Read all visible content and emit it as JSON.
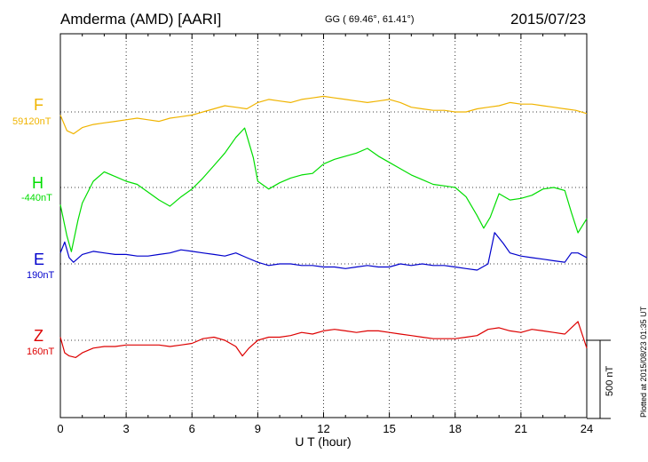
{
  "header": {
    "station": "Amderma (AMD)  [AARI]",
    "coords": "GG ( 69.46°,  61.41°)",
    "date": "2015/07/23"
  },
  "plotted_note": "Plotted at 2015/08/23 01:35 UT",
  "chart_data": {
    "type": "line",
    "title": "Amderma (AMD)  [AARI]",
    "xlabel": "U T (hour)",
    "xlim": [
      0,
      24
    ],
    "xticks": [
      0,
      3,
      6,
      9,
      12,
      15,
      18,
      21,
      24
    ],
    "xtick_labels": [
      "0",
      "3",
      "6",
      "9",
      "12",
      "15",
      "18",
      "21",
      "24"
    ],
    "scale_bar": {
      "value": 500,
      "unit": "nT",
      "label": "500 nT"
    },
    "grid": true,
    "series": [
      {
        "name": "F",
        "baseline_label": "59120nT",
        "baseline": 59120,
        "color": "#f0b400",
        "x": [
          0,
          0.3,
          0.6,
          1,
          1.5,
          2,
          2.5,
          3,
          3.5,
          4,
          4.5,
          5,
          5.5,
          6,
          6.5,
          7,
          7.5,
          8,
          8.5,
          9,
          9.5,
          10,
          10.5,
          11,
          11.5,
          12,
          12.5,
          13,
          13.5,
          14,
          14.5,
          15,
          15.5,
          16,
          16.5,
          17,
          17.5,
          18,
          18.5,
          19,
          19.5,
          20,
          20.5,
          21,
          21.5,
          22,
          22.5,
          23,
          23.5,
          24
        ],
        "values": [
          59100,
          59000,
          58980,
          59020,
          59040,
          59050,
          59060,
          59070,
          59080,
          59070,
          59060,
          59080,
          59090,
          59100,
          59120,
          59140,
          59160,
          59150,
          59140,
          59180,
          59200,
          59190,
          59180,
          59200,
          59210,
          59220,
          59210,
          59200,
          59190,
          59180,
          59190,
          59200,
          59180,
          59150,
          59140,
          59130,
          59130,
          59120,
          59120,
          59140,
          59150,
          59160,
          59180,
          59170,
          59170,
          59160,
          59150,
          59140,
          59130,
          59110
        ]
      },
      {
        "name": "H",
        "baseline_label": "-440nT",
        "baseline": -440,
        "color": "#00dd00",
        "x": [
          0,
          0.3,
          0.5,
          0.8,
          1,
          1.5,
          2,
          2.5,
          3,
          3.5,
          4,
          4.5,
          5,
          5.5,
          6,
          6.5,
          7,
          7.5,
          8,
          8.4,
          8.8,
          9,
          9.5,
          10,
          10.5,
          11,
          11.5,
          12,
          12.5,
          13,
          13.5,
          14,
          14.5,
          15,
          15.5,
          16,
          16.5,
          17,
          17.5,
          18,
          18.5,
          19,
          19.3,
          19.6,
          20,
          20.5,
          21,
          21.5,
          22,
          22.5,
          23,
          23.3,
          23.6,
          24
        ],
        "values": [
          -550,
          -750,
          -850,
          -650,
          -540,
          -400,
          -340,
          -370,
          -400,
          -420,
          -470,
          -520,
          -560,
          -500,
          -450,
          -380,
          -300,
          -220,
          -120,
          -60,
          -250,
          -400,
          -450,
          -410,
          -380,
          -360,
          -350,
          -290,
          -260,
          -240,
          -220,
          -190,
          -240,
          -280,
          -320,
          -360,
          -390,
          -420,
          -430,
          -440,
          -500,
          -620,
          -700,
          -630,
          -480,
          -520,
          -510,
          -490,
          -450,
          -440,
          -460,
          -600,
          -730,
          -640
        ]
      },
      {
        "name": "E",
        "baseline_label": "190nT",
        "baseline": 190,
        "color": "#0000cc",
        "x": [
          0,
          0.2,
          0.4,
          0.6,
          1,
          1.5,
          2,
          2.5,
          3,
          3.5,
          4,
          4.5,
          5,
          5.5,
          6,
          6.5,
          7,
          7.5,
          8,
          8.5,
          9,
          9.5,
          10,
          10.5,
          11,
          11.5,
          12,
          12.5,
          13,
          13.5,
          14,
          14.5,
          15,
          15.5,
          16,
          16.5,
          17,
          17.5,
          18,
          18.5,
          19,
          19.5,
          19.8,
          20.2,
          20.5,
          21,
          21.5,
          22,
          22.5,
          23,
          23.3,
          23.6,
          24
        ],
        "values": [
          260,
          330,
          230,
          200,
          250,
          270,
          260,
          250,
          250,
          240,
          240,
          250,
          260,
          280,
          270,
          260,
          250,
          240,
          260,
          230,
          200,
          180,
          190,
          190,
          180,
          180,
          170,
          170,
          160,
          170,
          180,
          170,
          170,
          190,
          180,
          190,
          180,
          180,
          170,
          160,
          150,
          190,
          390,
          320,
          260,
          240,
          230,
          220,
          210,
          200,
          260,
          260,
          230
        ]
      },
      {
        "name": "Z",
        "baseline_label": "160nT",
        "baseline": 160,
        "color": "#dd0000",
        "x": [
          0,
          0.2,
          0.4,
          0.7,
          1,
          1.5,
          2,
          2.5,
          3,
          3.5,
          4,
          4.5,
          5,
          5.5,
          6,
          6.5,
          7,
          7.5,
          8,
          8.3,
          8.6,
          9,
          9.5,
          10,
          10.5,
          11,
          11.5,
          12,
          12.5,
          13,
          13.5,
          14,
          14.5,
          15,
          15.5,
          16,
          16.5,
          17,
          17.5,
          18,
          18.5,
          19,
          19.5,
          20,
          20.5,
          21,
          21.5,
          22,
          22.5,
          23,
          23.3,
          23.6,
          24
        ],
        "values": [
          180,
          80,
          60,
          50,
          80,
          110,
          120,
          120,
          130,
          130,
          130,
          130,
          120,
          130,
          140,
          170,
          180,
          160,
          120,
          60,
          110,
          160,
          180,
          180,
          190,
          210,
          200,
          220,
          230,
          220,
          210,
          220,
          220,
          210,
          200,
          190,
          180,
          170,
          170,
          170,
          180,
          190,
          230,
          240,
          220,
          210,
          230,
          220,
          210,
          200,
          240,
          280,
          110
        ]
      }
    ]
  }
}
